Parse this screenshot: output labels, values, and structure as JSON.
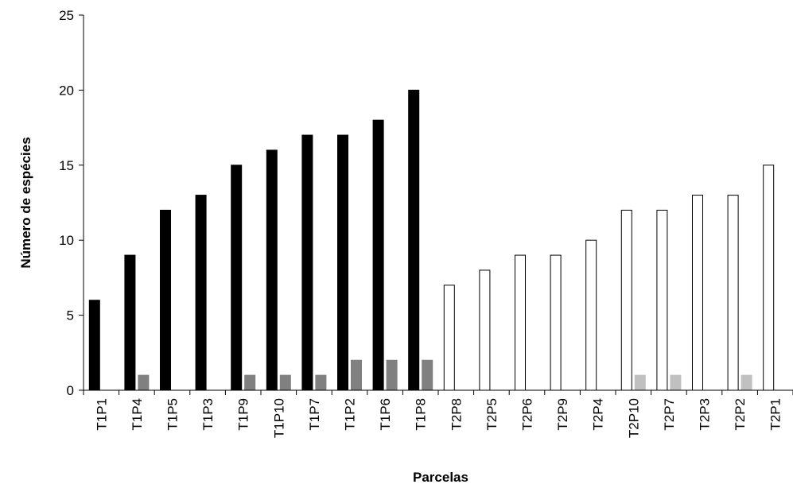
{
  "chart_data": {
    "type": "bar",
    "title": "",
    "xlabel": "Parcelas",
    "ylabel": "Número de espécies",
    "ylim": [
      0,
      25
    ],
    "yticks": [
      0,
      5,
      10,
      15,
      20,
      25
    ],
    "grid": false,
    "categories": [
      "T1P1",
      "T1P4",
      "T1P5",
      "T1P3",
      "T1P9",
      "T1P10",
      "T1P7",
      "T1P2",
      "T1P6",
      "T1P8",
      "T2P8",
      "T2P5",
      "T2P6",
      "T2P9",
      "T2P4",
      "T2P10",
      "T2P7",
      "T2P3",
      "T2P2",
      "T2P1"
    ],
    "series": [
      {
        "values": [
          6,
          9,
          12,
          13,
          15,
          16,
          17,
          17,
          18,
          20,
          7,
          8,
          9,
          9,
          10,
          12,
          12,
          13,
          13,
          15
        ],
        "colors": [
          "#000000",
          "#000000",
          "#000000",
          "#000000",
          "#000000",
          "#000000",
          "#000000",
          "#000000",
          "#000000",
          "#000000",
          "#ffffff",
          "#ffffff",
          "#ffffff",
          "#ffffff",
          "#ffffff",
          "#ffffff",
          "#ffffff",
          "#ffffff",
          "#ffffff",
          "#ffffff"
        ]
      },
      {
        "values": [
          0,
          1,
          0,
          0,
          1,
          1,
          1,
          2,
          2,
          2,
          0,
          0,
          0,
          0,
          0,
          1,
          1,
          0,
          1,
          0
        ],
        "colors": [
          "#808080",
          "#808080",
          "#808080",
          "#808080",
          "#808080",
          "#808080",
          "#808080",
          "#808080",
          "#808080",
          "#808080",
          "#c0c0c0",
          "#c0c0c0",
          "#c0c0c0",
          "#c0c0c0",
          "#c0c0c0",
          "#c0c0c0",
          "#c0c0c0",
          "#c0c0c0",
          "#c0c0c0",
          "#c0c0c0"
        ]
      }
    ]
  }
}
